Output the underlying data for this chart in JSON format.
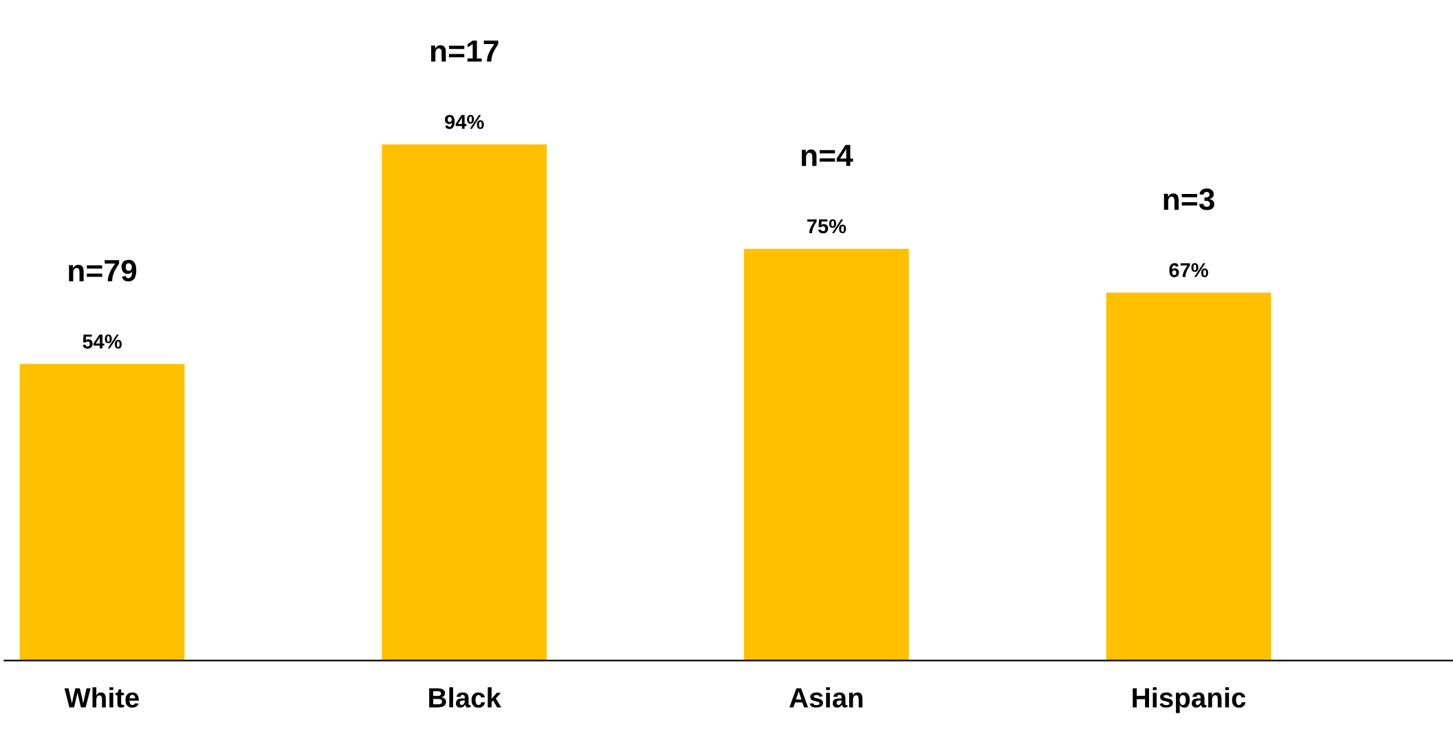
{
  "chart_data": {
    "type": "bar",
    "categories": [
      "White",
      "Black",
      "Asian",
      "Hispanic"
    ],
    "values": [
      54,
      94,
      75,
      67
    ],
    "value_labels": [
      "54%",
      "94%",
      "75%",
      "67%"
    ],
    "color": "#ffc000",
    "grid": false,
    "legend": false,
    "annotations": [
      "n=79",
      "n=17",
      "n=4",
      "n=3"
    ]
  }
}
